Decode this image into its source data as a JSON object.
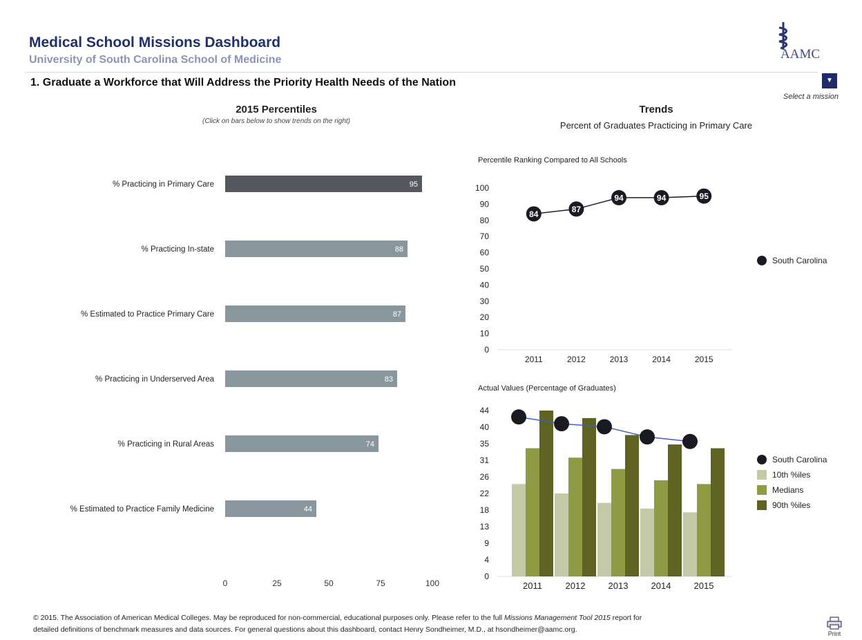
{
  "header": {
    "title": "Medical School Missions Dashboard",
    "subtitle": "University of South Carolina School of Medicine",
    "logo_text": "AAMC",
    "mission_title": "1. Graduate a Workforce that Will Address the Priority Health Needs of the Nation",
    "select_mission_label": "Select a mission",
    "dropdown_icon": "caret-down-icon"
  },
  "left_panel": {
    "title": "2015 Percentiles",
    "subtitle": "(Click on bars below to show trends on the right)"
  },
  "right_panel": {
    "title": "Trends",
    "subtitle": "Percent of Graduates Practicing in Primary Care",
    "line_chart_title": "Percentile Ranking Compared to All Schools",
    "combo_chart_title": "Actual Values (Percentage of Graduates)"
  },
  "legend_top": [
    {
      "label": "South Carolina",
      "color": "#1a1a22"
    }
  ],
  "legend_bottom": [
    {
      "label": "South Carolina",
      "color": "#1a1a22",
      "kind": "dot"
    },
    {
      "label": "10th %iles",
      "color": "#c4c9a8",
      "kind": "square"
    },
    {
      "label": "Medians",
      "color": "#8f9a45",
      "kind": "square"
    },
    {
      "label": "90th %iles",
      "color": "#5e6322",
      "kind": "square"
    }
  ],
  "chart_data": [
    {
      "type": "bar",
      "orientation": "horizontal",
      "categories": [
        "% Practicing in Primary Care",
        "% Practicing In-state",
        "% Estimated to Practice Primary Care",
        "% Practicing in Underserved Area",
        "% Practicing in Rural Areas",
        "% Estimated to Practice Family Medicine"
      ],
      "values": [
        95,
        88,
        87,
        83,
        74,
        44
      ],
      "x_ticks": [
        "0",
        "25",
        "50",
        "75",
        "100"
      ],
      "xlim": [
        0,
        100
      ],
      "highlight_color": "#55595d",
      "bar_color": "#8a969e"
    },
    {
      "type": "line",
      "x": [
        "2011",
        "2012",
        "2013",
        "2014",
        "2015"
      ],
      "series": [
        {
          "name": "South Carolina",
          "values": [
            84,
            87,
            94,
            94,
            95
          ]
        }
      ],
      "y_ticks": [
        "0",
        "10",
        "20",
        "30",
        "40",
        "50",
        "60",
        "70",
        "80",
        "90",
        "100"
      ],
      "ylim": [
        0,
        100
      ]
    },
    {
      "type": "bar",
      "x": [
        "2011",
        "2012",
        "2013",
        "2014",
        "2015"
      ],
      "series": [
        {
          "name": "10th %iles",
          "values": [
            24.5,
            22,
            19.5,
            18,
            17
          ]
        },
        {
          "name": "Medians",
          "values": [
            34,
            31.5,
            28.5,
            25.5,
            24.5
          ]
        },
        {
          "name": "90th %iles",
          "values": [
            44,
            42,
            37.5,
            35,
            34
          ]
        },
        {
          "name": "South Carolina",
          "values": [
            42.3,
            40.5,
            39.7,
            37,
            35.8
          ],
          "kind": "line"
        }
      ],
      "y_ticks": [
        "0",
        "4",
        "9",
        "13",
        "18",
        "22",
        "26",
        "31",
        "35",
        "40",
        "44"
      ],
      "ylim": [
        0,
        44
      ]
    }
  ],
  "footer": {
    "line1_a": "© 2015. The Association of American Medical Colleges. May be reproduced for non-commercial, educational purposes only.  Please refer to the full ",
    "line1_em": "Missions Management Tool 2015",
    "line1_b": " report for",
    "line2": "detailed definitions of benchmark measures and data sources. For general questions about this dashboard, contact Henry Sondheimer, M.D., at hsondheimer@aamc.org.",
    "print_label": "Print"
  }
}
